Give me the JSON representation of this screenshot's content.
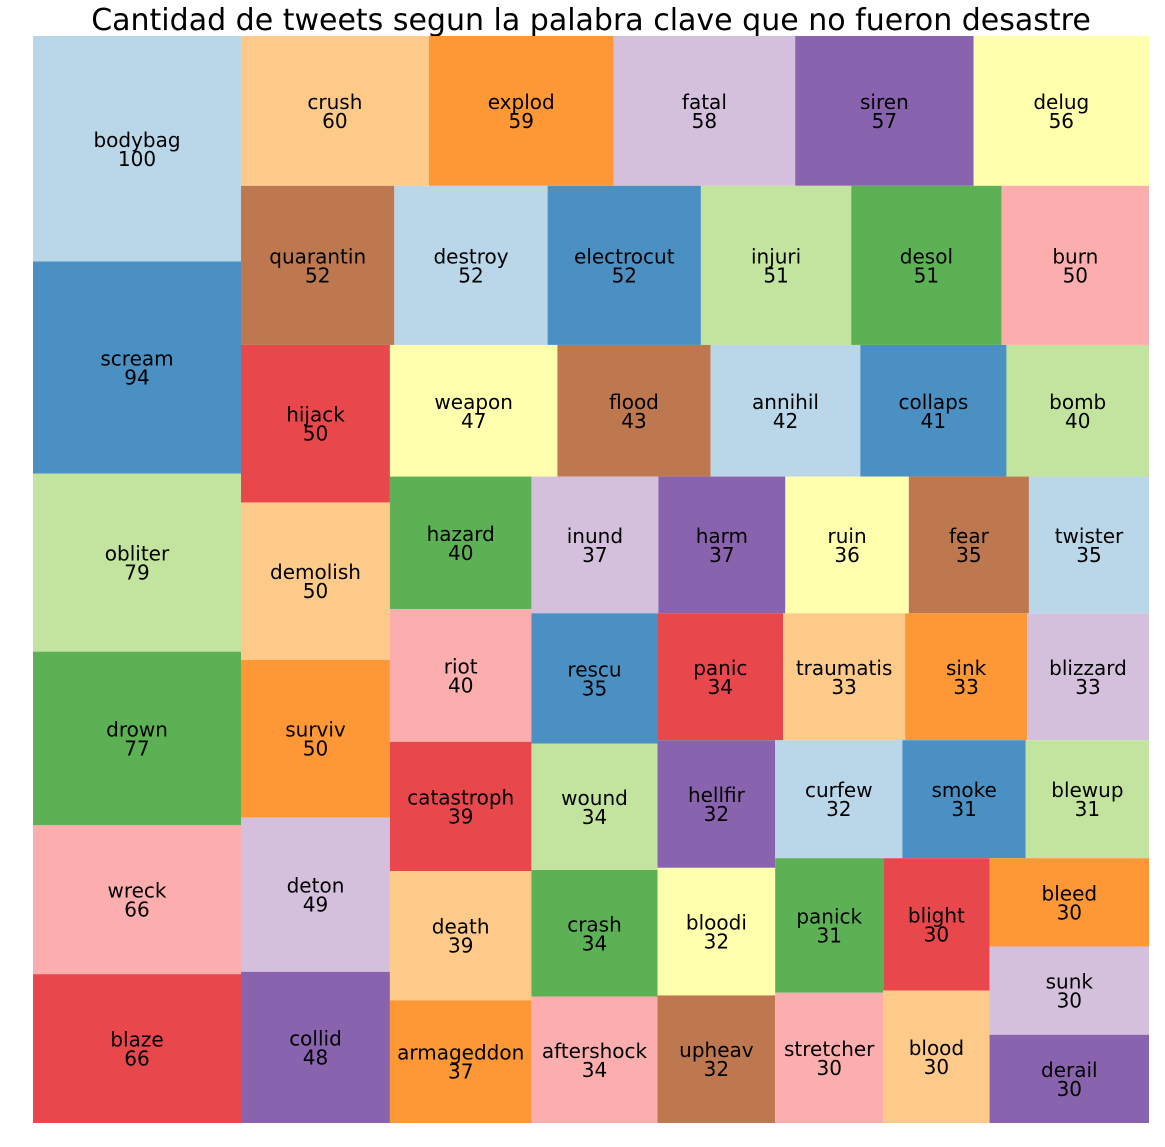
{
  "chart_data": {
    "type": "treemap",
    "title": "Cantidad de tweets segun la palabra clave que no fueron desastre",
    "palette": [
      "#b9d7e8",
      "#4a90c2",
      "#c3e49e",
      "#5cb155",
      "#fcaeae",
      "#e8474b",
      "#fdca8a",
      "#fe9735",
      "#d4c0dc",
      "#8963ae",
      "#ffffae",
      "#bd7850"
    ],
    "items": [
      {
        "label": "bodybag",
        "value": 100,
        "color": "#b9d7e8"
      },
      {
        "label": "scream",
        "value": 94,
        "color": "#4a90c2"
      },
      {
        "label": "obliter",
        "value": 79,
        "color": "#c3e49e"
      },
      {
        "label": "drown",
        "value": 77,
        "color": "#5cb155"
      },
      {
        "label": "wreck",
        "value": 66,
        "color": "#fcaeae"
      },
      {
        "label": "blaze",
        "value": 66,
        "color": "#e8474b"
      },
      {
        "label": "crush",
        "value": 60,
        "color": "#fdca8a"
      },
      {
        "label": "explod",
        "value": 59,
        "color": "#fe9735"
      },
      {
        "label": "fatal",
        "value": 58,
        "color": "#d4c0dc"
      },
      {
        "label": "siren",
        "value": 57,
        "color": "#8963ae"
      },
      {
        "label": "delug",
        "value": 56,
        "color": "#ffffae"
      },
      {
        "label": "quarantin",
        "value": 52,
        "color": "#bd7850"
      },
      {
        "label": "destroy",
        "value": 52,
        "color": "#b9d7e8"
      },
      {
        "label": "electrocut",
        "value": 52,
        "color": "#4a90c2"
      },
      {
        "label": "injuri",
        "value": 51,
        "color": "#c3e49e"
      },
      {
        "label": "desol",
        "value": 51,
        "color": "#5cb155"
      },
      {
        "label": "burn",
        "value": 50,
        "color": "#fcaeae"
      },
      {
        "label": "hijack",
        "value": 50,
        "color": "#e8474b"
      },
      {
        "label": "demolish",
        "value": 50,
        "color": "#fdca8a"
      },
      {
        "label": "surviv",
        "value": 50,
        "color": "#fe9735"
      },
      {
        "label": "deton",
        "value": 49,
        "color": "#d4c0dc"
      },
      {
        "label": "collid",
        "value": 48,
        "color": "#8963ae"
      },
      {
        "label": "weapon",
        "value": 47,
        "color": "#ffffae"
      },
      {
        "label": "flood",
        "value": 43,
        "color": "#bd7850"
      },
      {
        "label": "annihil",
        "value": 42,
        "color": "#b9d7e8"
      },
      {
        "label": "collaps",
        "value": 41,
        "color": "#4a90c2"
      },
      {
        "label": "bomb",
        "value": 40,
        "color": "#c3e49e"
      },
      {
        "label": "hazard",
        "value": 40,
        "color": "#5cb155"
      },
      {
        "label": "riot",
        "value": 40,
        "color": "#fcaeae"
      },
      {
        "label": "catastroph",
        "value": 39,
        "color": "#e8474b"
      },
      {
        "label": "death",
        "value": 39,
        "color": "#fdca8a"
      },
      {
        "label": "armageddon",
        "value": 37,
        "color": "#fe9735"
      },
      {
        "label": "inund",
        "value": 37,
        "color": "#d4c0dc"
      },
      {
        "label": "harm",
        "value": 37,
        "color": "#8963ae"
      },
      {
        "label": "ruin",
        "value": 36,
        "color": "#ffffae"
      },
      {
        "label": "fear",
        "value": 35,
        "color": "#bd7850"
      },
      {
        "label": "twister",
        "value": 35,
        "color": "#b9d7e8"
      },
      {
        "label": "rescu",
        "value": 35,
        "color": "#4a90c2"
      },
      {
        "label": "wound",
        "value": 34,
        "color": "#c3e49e"
      },
      {
        "label": "crash",
        "value": 34,
        "color": "#5cb155"
      },
      {
        "label": "aftershock",
        "value": 34,
        "color": "#fcaeae"
      },
      {
        "label": "panic",
        "value": 34,
        "color": "#e8474b"
      },
      {
        "label": "traumatis",
        "value": 33,
        "color": "#fdca8a"
      },
      {
        "label": "sink",
        "value": 33,
        "color": "#fe9735"
      },
      {
        "label": "blizzard",
        "value": 33,
        "color": "#d4c0dc"
      },
      {
        "label": "hellfir",
        "value": 32,
        "color": "#8963ae"
      },
      {
        "label": "bloodi",
        "value": 32,
        "color": "#ffffae"
      },
      {
        "label": "upheav",
        "value": 32,
        "color": "#bd7850"
      },
      {
        "label": "curfew",
        "value": 32,
        "color": "#b9d7e8"
      },
      {
        "label": "smoke",
        "value": 31,
        "color": "#4a90c2"
      },
      {
        "label": "blewup",
        "value": 31,
        "color": "#c3e49e"
      },
      {
        "label": "panick",
        "value": 31,
        "color": "#5cb155"
      },
      {
        "label": "stretcher",
        "value": 30,
        "color": "#fcaeae"
      },
      {
        "label": "blight",
        "value": 30,
        "color": "#e8474b"
      },
      {
        "label": "blood",
        "value": 30,
        "color": "#fdca8a"
      },
      {
        "label": "bleed",
        "value": 30,
        "color": "#fe9735"
      },
      {
        "label": "sunk",
        "value": 30,
        "color": "#d4c0dc"
      },
      {
        "label": "derail",
        "value": 30,
        "color": "#8963ae"
      }
    ]
  }
}
